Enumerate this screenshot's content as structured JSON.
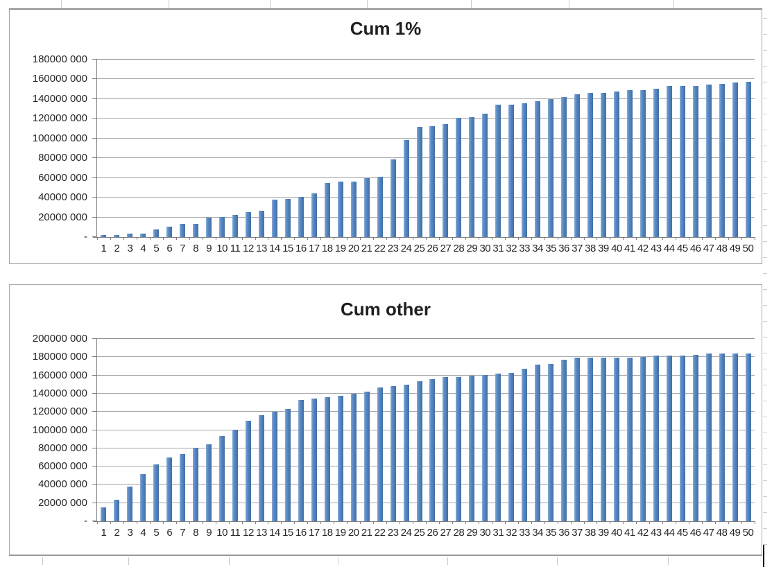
{
  "colors": {
    "bar": "#4f81bd",
    "bar_highlight": "#8aadd6",
    "gridline": "#a6a6a6",
    "axis": "#7f7f7f",
    "text": "#262626",
    "title_text": "#1f1f1f",
    "frame_border": "#a3a3a3"
  },
  "chart_data": [
    {
      "type": "bar",
      "title": "Cum 1%",
      "xlabel": "",
      "ylabel": "",
      "ylim": [
        0,
        180000000
      ],
      "y_major_unit": 20000000,
      "grid": true,
      "legend": "none",
      "y_tick_labels": [
        "-",
        "20000 000",
        "40000 000",
        "60000 000",
        "80000 000",
        "100000 000",
        "120000 000",
        "140000 000",
        "160000 000",
        "180000 000"
      ],
      "categories": [
        "1",
        "2",
        "3",
        "4",
        "5",
        "6",
        "7",
        "8",
        "9",
        "10",
        "11",
        "12",
        "13",
        "14",
        "15",
        "16",
        "17",
        "18",
        "19",
        "20",
        "21",
        "22",
        "23",
        "24",
        "25",
        "26",
        "27",
        "28",
        "29",
        "30",
        "31",
        "32",
        "33",
        "34",
        "35",
        "36",
        "37",
        "38",
        "39",
        "40",
        "41",
        "42",
        "43",
        "44",
        "45",
        "46",
        "47",
        "48",
        "49",
        "50"
      ],
      "values": [
        2000000,
        2000000,
        3500000,
        3500000,
        8000000,
        10500000,
        13500000,
        13500000,
        20000000,
        20300000,
        22300000,
        25500000,
        27000000,
        38000000,
        39000000,
        40500000,
        44000000,
        54500000,
        56000000,
        56000000,
        59500000,
        61000000,
        78500000,
        98500000,
        111500000,
        112500000,
        114500000,
        121000000,
        121500000,
        125000000,
        134500000,
        134500000,
        136000000,
        137500000,
        140000000,
        142000000,
        145000000,
        146000000,
        146200000,
        148000000,
        149200000,
        149300000,
        150500000,
        153200000,
        153300000,
        153400000,
        155000000,
        155300000,
        156800000,
        157500000
      ]
    },
    {
      "type": "bar",
      "title": "Cum other",
      "xlabel": "",
      "ylabel": "",
      "ylim": [
        0,
        200000000
      ],
      "y_major_unit": 20000000,
      "grid": true,
      "legend": "none",
      "y_tick_labels": [
        "-",
        "20000 000",
        "40000 000",
        "60000 000",
        "80000 000",
        "100000 000",
        "120000 000",
        "140000 000",
        "160000 000",
        "180000 000",
        "200000 000"
      ],
      "categories": [
        "1",
        "2",
        "3",
        "4",
        "5",
        "6",
        "7",
        "8",
        "9",
        "10",
        "11",
        "12",
        "13",
        "14",
        "15",
        "16",
        "17",
        "18",
        "19",
        "20",
        "21",
        "22",
        "23",
        "24",
        "25",
        "26",
        "27",
        "28",
        "29",
        "30",
        "31",
        "32",
        "33",
        "34",
        "35",
        "36",
        "37",
        "38",
        "39",
        "40",
        "41",
        "42",
        "43",
        "44",
        "45",
        "46",
        "47",
        "48",
        "49",
        "50"
      ],
      "values": [
        15000000,
        23500000,
        38000000,
        52000000,
        62000000,
        70000000,
        74000000,
        80500000,
        84500000,
        93500000,
        100500000,
        110000000,
        116000000,
        120000000,
        123000000,
        133000000,
        134500000,
        136000000,
        137500000,
        140000000,
        142000000,
        147000000,
        148000000,
        150000000,
        153500000,
        156000000,
        158000000,
        158200000,
        160000000,
        160300000,
        162300000,
        162400000,
        167000000,
        172000000,
        172300000,
        177400000,
        179200000,
        179300000,
        179300000,
        179800000,
        179800000,
        179900000,
        182000000,
        182100000,
        182100000,
        182200000,
        183800000,
        183900000,
        183900000,
        184000000
      ]
    }
  ]
}
